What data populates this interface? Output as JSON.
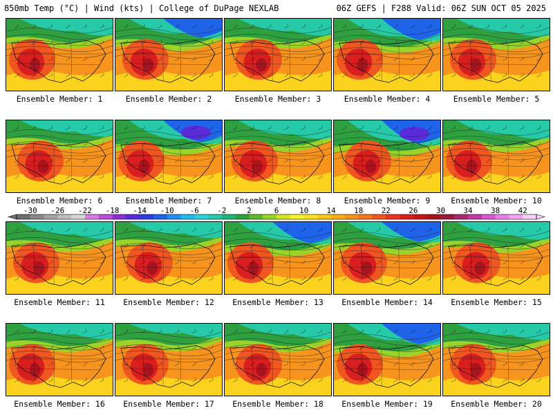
{
  "header": {
    "left": "850mb Temp (°C) | Wind (kts) | College of DuPage NEXLAB",
    "right": "06Z GEFS | F288 Valid: 06Z SUN OCT 05 2025"
  },
  "panels": [
    {
      "label": "Ensemble Member: 1",
      "cold": 0.45
    },
    {
      "label": "Ensemble Member: 2",
      "cold": 0.6
    },
    {
      "label": "Ensemble Member: 3",
      "cold": 0.45
    },
    {
      "label": "Ensemble Member: 4",
      "cold": 0.75
    },
    {
      "label": "Ensemble Member: 5",
      "cold": 0.5
    },
    {
      "label": "Ensemble Member: 6",
      "cold": 0.4
    },
    {
      "label": "Ensemble Member: 7",
      "cold": 0.8
    },
    {
      "label": "Ensemble Member: 8",
      "cold": 0.55
    },
    {
      "label": "Ensemble Member: 9",
      "cold": 0.9
    },
    {
      "label": "Ensemble Member: 10",
      "cold": 0.55
    },
    {
      "label": "Ensemble Member: 11",
      "cold": 0.45
    },
    {
      "label": "Ensemble Member: 12",
      "cold": 0.4
    },
    {
      "label": "Ensemble Member: 13",
      "cold": 0.75
    },
    {
      "label": "Ensemble Member: 14",
      "cold": 0.65
    },
    {
      "label": "Ensemble Member: 15",
      "cold": 0.5
    },
    {
      "label": "Ensemble Member: 16",
      "cold": 0.35
    },
    {
      "label": "Ensemble Member: 17",
      "cold": 0.3
    },
    {
      "label": "Ensemble Member: 18",
      "cold": 0.35
    },
    {
      "label": "Ensemble Member: 19",
      "cold": 0.7
    },
    {
      "label": "Ensemble Member: 20",
      "cold": 0.4
    }
  ],
  "colorbar": {
    "ticks": [
      "-30",
      "-26",
      "-22",
      "-18",
      "-14",
      "-10",
      "-6",
      "-2",
      "2",
      "6",
      "10",
      "14",
      "18",
      "22",
      "26",
      "30",
      "34",
      "38",
      "42"
    ],
    "colors": [
      "#6e6e6e",
      "#8a8a8a",
      "#a3a3a3",
      "#bdbdbd",
      "#d5d5d5",
      "#d67ae0",
      "#b94fd6",
      "#8a2fd0",
      "#5a2bd8",
      "#2d3be0",
      "#1f63e8",
      "#1f8ff0",
      "#22b8f0",
      "#2bd3d8",
      "#26c9a8",
      "#1fb47a",
      "#2fa040",
      "#5fb82a",
      "#9ad42a",
      "#d2e628",
      "#f5f52a",
      "#fbe11e",
      "#fbc81a",
      "#f9ae16",
      "#f7921a",
      "#f4761d",
      "#f0561f",
      "#e83420",
      "#d81e1e",
      "#c21818",
      "#a8141e",
      "#981a3c",
      "#a82a6e",
      "#c13aa4",
      "#d858d2",
      "#e880e8",
      "#f2a6f2",
      "#f8d2f8"
    ]
  }
}
